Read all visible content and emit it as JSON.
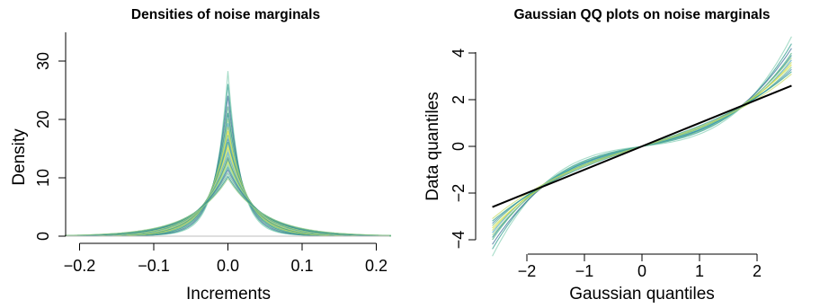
{
  "chart_data": [
    {
      "type": "line",
      "title": "Densities of noise marginals",
      "xlabel": "Increments",
      "ylabel": "Density",
      "xlim": [
        -0.22,
        0.22
      ],
      "ylim": [
        0,
        35
      ],
      "xticks": [
        "−0.2",
        "−0.1",
        "0.0",
        "0.1",
        "0.2"
      ],
      "xtick_values": [
        -0.2,
        -0.1,
        0.0,
        0.1,
        0.2
      ],
      "yticks": [
        "0",
        "10",
        "20",
        "30"
      ],
      "ytick_values": [
        0,
        10,
        20,
        30
      ],
      "curve_family": "Laplace-like densities centered at 0, one per noise marginal",
      "peak_densities": [
        30.2,
        27.8,
        25.6,
        23.6,
        22.4,
        21.3,
        20.5,
        19.8,
        19.0,
        18.3,
        17.6,
        17.0,
        16.4,
        15.9,
        15.4,
        14.9,
        14.4,
        14.0,
        13.6,
        13.2,
        12.8,
        12.3,
        11.8,
        11.2,
        10.6,
        10.2
      ],
      "series_colors": [
        "#8ad0b5",
        "#2f9e8f",
        "#3c6e97",
        "#5db88c",
        "#1f8a8a",
        "#9fd38a",
        "#3e9ec7",
        "#b5d65a",
        "#d7dc3a",
        "#6cc08b",
        "#4a90b0",
        "#2fa08a",
        "#c7de6a",
        "#e3e43a",
        "#88c9c9",
        "#5aa9b5",
        "#a5d99a",
        "#2d7f8f",
        "#77c270",
        "#cde35a"
      ],
      "baseline": true
    },
    {
      "type": "line",
      "title": "Gaussian QQ plots on noise marginals",
      "xlabel": "Gaussian quantiles",
      "ylabel": "Data quantiles",
      "xlim": [
        -2.6,
        2.6
      ],
      "ylim": [
        -4,
        4
      ],
      "xticks": [
        "−2",
        "−1",
        "0",
        "1",
        "2"
      ],
      "xtick_values": [
        -2,
        -1,
        0,
        1,
        2
      ],
      "yticks": [
        "−4",
        "−2",
        "0",
        "2",
        "4"
      ],
      "ytick_values": [
        -4,
        -2,
        0,
        2,
        4
      ],
      "curve_family": "S-shaped QQ curves (heavy-tailed samples)",
      "reference_line": {
        "intercept": 0,
        "slope": 1.0,
        "color": "#000000"
      },
      "qq_tail_values_at_x_2_6": [
        4.7,
        4.4,
        4.2,
        4.0,
        3.9,
        3.8,
        3.7,
        3.6,
        3.5,
        3.4,
        3.3,
        3.2,
        3.1
      ],
      "series_colors": [
        "#8ad0b5",
        "#2f9e8f",
        "#3c6e97",
        "#5db88c",
        "#1f8a8a",
        "#9fd38a",
        "#3e9ec7",
        "#b5d65a",
        "#d7dc3a",
        "#6cc08b",
        "#4a90b0",
        "#2fa08a",
        "#c7de6a",
        "#e3e43a"
      ]
    }
  ]
}
